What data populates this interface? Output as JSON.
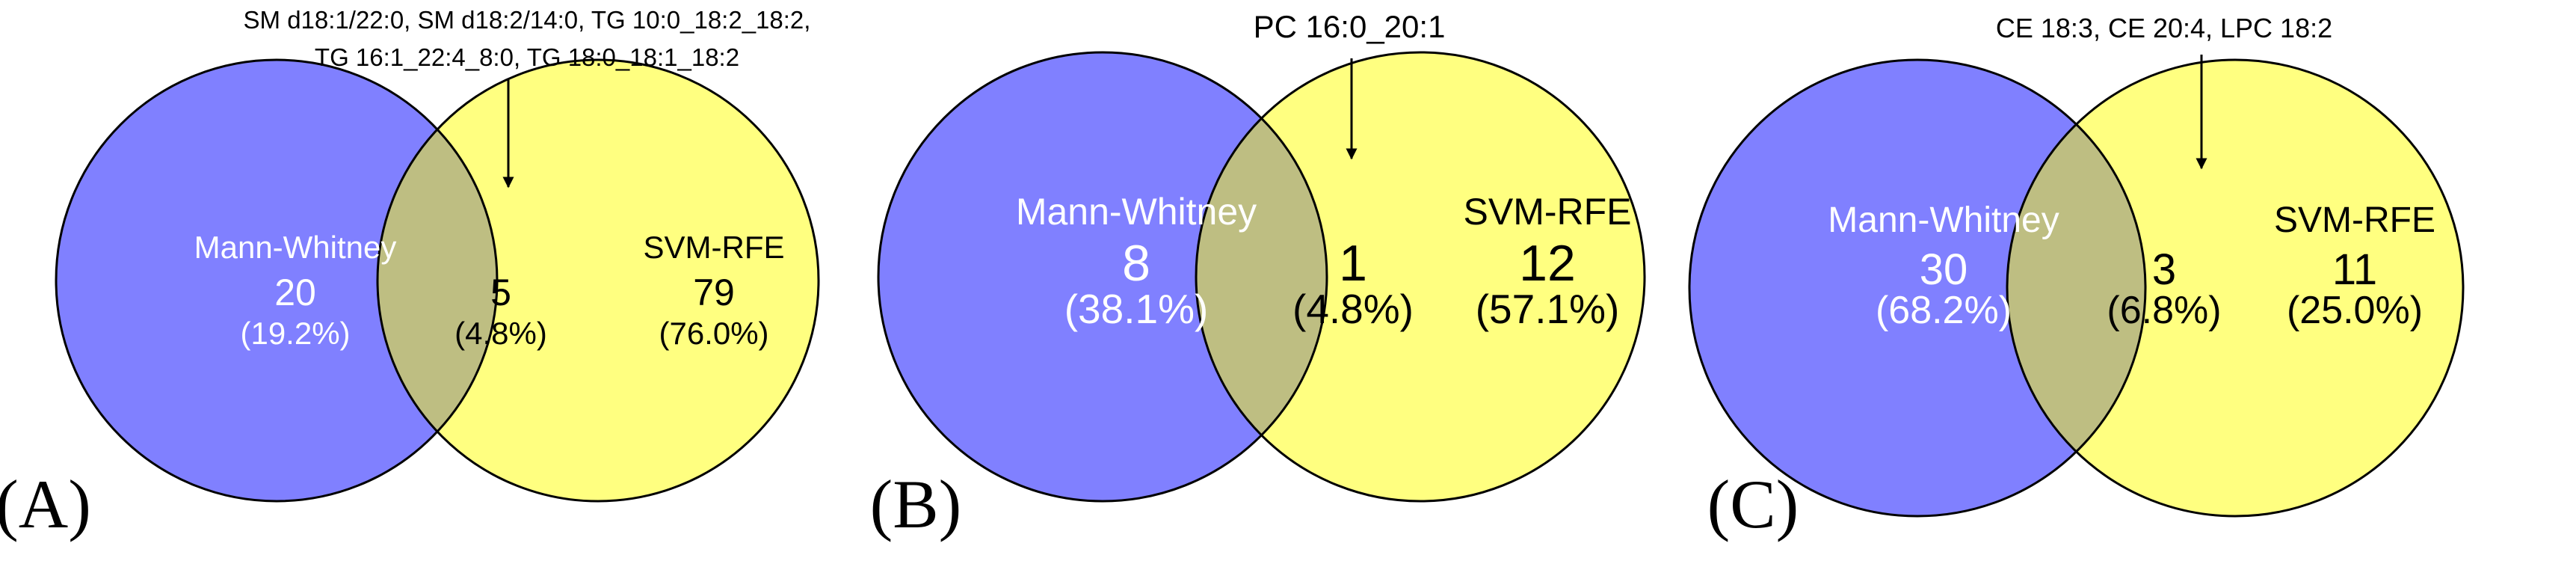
{
  "colors": {
    "left_set": "#8080ff",
    "right_set": "#ffff80",
    "intersection": "#bebe82",
    "outline": "#000000",
    "left_text": "#ffffff",
    "other_text": "#000000"
  },
  "panels": [
    {
      "tag": "(A)",
      "callout": {
        "lines": [
          "SM d18:1/22:0, SM d18:2/14:0, TG 10:0_18:2_18:2,",
          "TG 16:1_22:4_8:0, TG 18:0_18:1_18:2"
        ]
      },
      "left": {
        "name": "Mann-Whitney",
        "count": "20",
        "percent": "(19.2%)"
      },
      "overlap": {
        "count": "5",
        "percent": "(4.8%)"
      },
      "right": {
        "name": "SVM-RFE",
        "count": "79",
        "percent": "(76.0%)"
      }
    },
    {
      "tag": "(B)",
      "callout": {
        "lines": [
          "PC 16:0_20:1"
        ]
      },
      "left": {
        "name": "Mann-Whitney",
        "count": "8",
        "percent": "(38.1%)"
      },
      "overlap": {
        "count": "1",
        "percent": "(4.8%)"
      },
      "right": {
        "name": "SVM-RFE",
        "count": "12",
        "percent": "(57.1%)"
      }
    },
    {
      "tag": "(C)",
      "callout": {
        "lines": [
          "CE 18:3, CE 20:4, LPC 18:2"
        ]
      },
      "left": {
        "name": "Mann-Whitney",
        "count": "30",
        "percent": "(68.2%)"
      },
      "overlap": {
        "count": "3",
        "percent": "(6.8%)"
      },
      "right": {
        "name": "SVM-RFE",
        "count": "11",
        "percent": "(25.0%)"
      }
    }
  ]
}
